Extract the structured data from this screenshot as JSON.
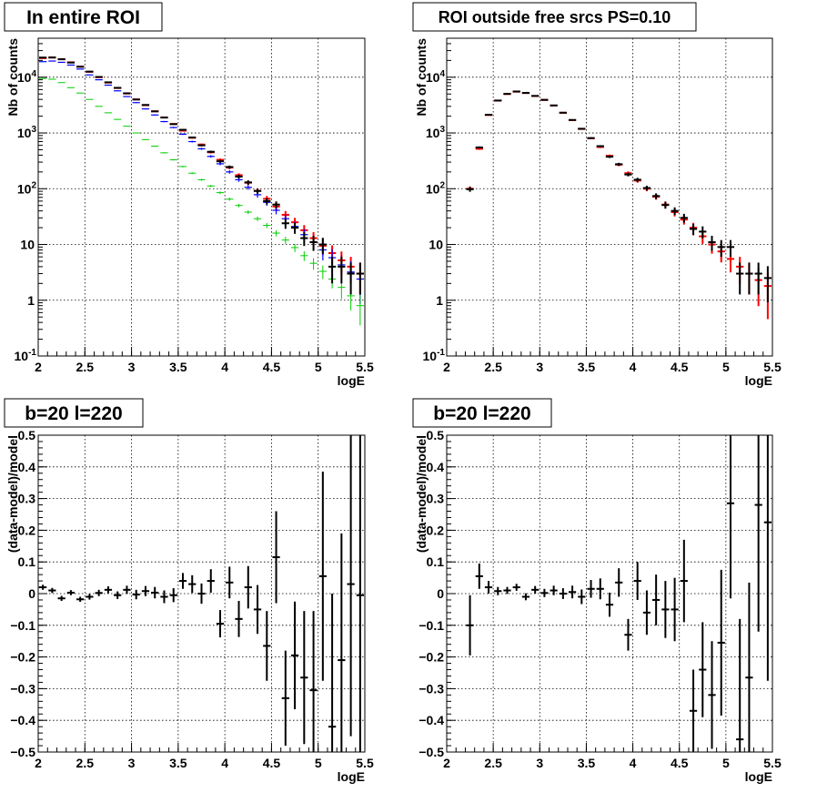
{
  "chart_data": [
    {
      "type": "scatter",
      "title": "In entire ROI",
      "xlabel": "logE",
      "ylabel": "Nb of counts",
      "xlim": [
        2,
        5.5
      ],
      "ylim": [
        0.1,
        50000
      ],
      "yscale": "log",
      "grid": true,
      "x_ticks": [
        "2",
        "2.5",
        "3",
        "3.5",
        "4",
        "4.5",
        "5",
        "5.5"
      ],
      "y_ticks": [
        "10^-1",
        "1",
        "10",
        "10^2",
        "10^3",
        "10^4"
      ],
      "bin_width": 0.1,
      "series": [
        {
          "color": "#ff0000",
          "x": [
            2.05,
            2.15,
            2.25,
            2.35,
            2.45,
            2.55,
            2.65,
            2.75,
            2.85,
            2.95,
            3.05,
            3.15,
            3.25,
            3.35,
            3.45,
            3.55,
            3.65,
            3.75,
            3.85,
            3.95,
            4.05,
            4.15,
            4.25,
            4.35,
            4.45,
            4.55,
            4.65,
            4.75,
            4.85,
            4.95,
            5.05,
            5.15,
            5.25,
            5.35,
            5.45
          ],
          "y": [
            22000,
            22500,
            21000,
            18500,
            15500,
            12500,
            10000,
            8000,
            6400,
            5100,
            4000,
            3150,
            2450,
            1900,
            1450,
            1100,
            820,
            620,
            450,
            330,
            240,
            175,
            128,
            92,
            66,
            48,
            34,
            25,
            18,
            13,
            9.5,
            7,
            5.2,
            4,
            3
          ]
        },
        {
          "color": "#0000ff",
          "x": [
            2.05,
            2.15,
            2.25,
            2.35,
            2.45,
            2.55,
            2.65,
            2.75,
            2.85,
            2.95,
            3.05,
            3.15,
            3.25,
            3.35,
            3.45,
            3.55,
            3.65,
            3.75,
            3.85,
            3.95,
            4.05,
            4.15,
            4.25,
            4.35,
            4.45,
            4.55,
            4.65,
            4.75,
            4.85,
            4.95,
            5.05,
            5.15,
            5.25,
            5.35,
            5.45
          ],
          "y": [
            19000,
            19500,
            18500,
            16500,
            14000,
            11000,
            9000,
            7200,
            5700,
            4500,
            3500,
            2700,
            2100,
            1600,
            1250,
            950,
            700,
            520,
            380,
            280,
            200,
            145,
            106,
            78,
            57,
            41,
            29,
            21,
            15,
            11,
            8,
            5.8,
            4.3,
            3.2,
            2.4
          ]
        },
        {
          "color": "#00cc00",
          "x": [
            2.05,
            2.15,
            2.25,
            2.35,
            2.45,
            2.55,
            2.65,
            2.75,
            2.85,
            2.95,
            3.05,
            3.15,
            3.25,
            3.35,
            3.45,
            3.55,
            3.65,
            3.75,
            3.85,
            3.95,
            4.05,
            4.15,
            4.25,
            4.35,
            4.45,
            4.55,
            4.65,
            4.75,
            4.85,
            4.95,
            5.05,
            5.15,
            5.25,
            5.35,
            5.45
          ],
          "y": [
            9500,
            9200,
            8000,
            6500,
            5200,
            4000,
            3000,
            2300,
            1750,
            1320,
            1000,
            760,
            580,
            440,
            330,
            250,
            190,
            145,
            112,
            85,
            65,
            50,
            38,
            29,
            22,
            16,
            12,
            8.8,
            6.3,
            4.6,
            3.3,
            2.4,
            1.7,
            1.2,
            0.8
          ],
          "err_scale": 0.5
        },
        {
          "color": "#000000",
          "x": [
            2.05,
            2.15,
            2.25,
            2.35,
            2.45,
            2.55,
            2.65,
            2.75,
            2.85,
            2.95,
            3.05,
            3.15,
            3.25,
            3.35,
            3.45,
            3.55,
            3.65,
            3.75,
            3.85,
            3.95,
            4.05,
            4.15,
            4.25,
            4.35,
            4.45,
            4.55,
            4.65,
            4.75,
            4.85,
            4.95,
            5.05,
            5.15,
            5.25,
            5.35,
            5.45
          ],
          "y": [
            22500,
            22600,
            21000,
            18300,
            15400,
            12600,
            10100,
            8100,
            6450,
            5150,
            3980,
            3180,
            2440,
            1890,
            1440,
            1140,
            830,
            600,
            460,
            310,
            245,
            165,
            130,
            91,
            60,
            52,
            24,
            20,
            13,
            11,
            10,
            4,
            4,
            3,
            3
          ]
        }
      ]
    },
    {
      "type": "scatter",
      "title": "ROI outside free srcs PS=0.10",
      "xlabel": "logE",
      "ylabel": "Nb of counts",
      "xlim": [
        2,
        5.5
      ],
      "ylim": [
        0.1,
        50000
      ],
      "yscale": "log",
      "grid": true,
      "x_ticks": [
        "2",
        "2.5",
        "3",
        "3.5",
        "4",
        "4.5",
        "5",
        "5.5"
      ],
      "y_ticks": [
        "10^-1",
        "1",
        "10",
        "10^2",
        "10^3",
        "10^4"
      ],
      "bin_width": 0.1,
      "series": [
        {
          "color": "#ff0000",
          "x": [
            2.25,
            2.35,
            2.45,
            2.55,
            2.65,
            2.75,
            2.85,
            2.95,
            3.05,
            3.15,
            3.25,
            3.35,
            3.45,
            3.55,
            3.65,
            3.75,
            3.85,
            3.95,
            4.05,
            4.15,
            4.25,
            4.35,
            4.45,
            4.55,
            4.65,
            4.75,
            4.85,
            4.95,
            5.05,
            5.15,
            5.25,
            5.35,
            5.45
          ],
          "y": [
            100,
            520,
            2100,
            3800,
            5000,
            5500,
            5200,
            4600,
            3900,
            3100,
            2300,
            1700,
            1180,
            800,
            560,
            390,
            270,
            190,
            140,
            100,
            72,
            52,
            38,
            28,
            20,
            14,
            10,
            7.5,
            5.5,
            4,
            3,
            2.3,
            1.8
          ]
        },
        {
          "color": "#000000",
          "x": [
            2.25,
            2.35,
            2.45,
            2.55,
            2.65,
            2.75,
            2.85,
            2.95,
            3.05,
            3.15,
            3.25,
            3.35,
            3.45,
            3.55,
            3.65,
            3.75,
            3.85,
            3.95,
            4.05,
            4.15,
            4.25,
            4.35,
            4.45,
            4.55,
            4.65,
            4.75,
            4.85,
            4.95,
            5.05,
            5.15,
            5.25,
            5.35,
            5.45
          ],
          "y": [
            98,
            550,
            2120,
            3820,
            5020,
            5550,
            5240,
            4620,
            3930,
            3120,
            2310,
            1710,
            1190,
            810,
            580,
            375,
            275,
            180,
            145,
            103,
            74,
            51,
            40,
            30,
            19,
            17,
            11,
            9,
            9,
            3,
            3,
            3,
            2.5
          ]
        }
      ]
    },
    {
      "type": "scatter",
      "title": "b=20 l=220",
      "xlabel": "logE",
      "ylabel": "(data-model)/model",
      "xlim": [
        2,
        5.5
      ],
      "ylim": [
        -0.5,
        0.5
      ],
      "grid": true,
      "x_ticks": [
        "2",
        "2.5",
        "3",
        "3.5",
        "4",
        "4.5",
        "5",
        "5.5"
      ],
      "y_ticks": [
        "−0.5",
        "−0.4",
        "−0.3",
        "−0.2",
        "−0.1",
        "0",
        "0.1",
        "0.2",
        "0.3",
        "0.4",
        "0.5"
      ],
      "y_tick_values": [
        -0.5,
        -0.4,
        -0.3,
        -0.2,
        -0.1,
        0,
        0.1,
        0.2,
        0.3,
        0.4,
        0.5
      ],
      "bin_width": 0.1,
      "series": [
        {
          "color": "#000000",
          "x": [
            2.05,
            2.15,
            2.25,
            2.35,
            2.45,
            2.55,
            2.65,
            2.75,
            2.85,
            2.95,
            3.05,
            3.15,
            3.25,
            3.35,
            3.45,
            3.55,
            3.65,
            3.75,
            3.85,
            3.95,
            4.05,
            4.15,
            4.25,
            4.35,
            4.45,
            4.55,
            4.65,
            4.75,
            4.85,
            4.95,
            5.05,
            5.15,
            5.25,
            5.35,
            5.45
          ],
          "y": [
            0.02,
            0.01,
            -0.015,
            0.003,
            -0.018,
            -0.01,
            0.002,
            0.012,
            -0.005,
            0.012,
            -0.003,
            0.008,
            0.003,
            -0.01,
            -0.005,
            0.04,
            0.03,
            0,
            0.04,
            -0.095,
            0.035,
            -0.08,
            0.02,
            -0.05,
            -0.165,
            0.115,
            -0.33,
            -0.195,
            -0.265,
            -0.305,
            0.055,
            -0.42,
            -0.21,
            0.03,
            -0.005
          ],
          "err": [
            0.008,
            0.008,
            0.008,
            0.008,
            0.008,
            0.009,
            0.01,
            0.011,
            0.012,
            0.013,
            0.015,
            0.016,
            0.018,
            0.02,
            0.022,
            0.025,
            0.028,
            0.032,
            0.037,
            0.043,
            0.05,
            0.057,
            0.067,
            0.077,
            0.11,
            0.145,
            0.15,
            0.17,
            0.21,
            0.25,
            0.33,
            0.42,
            0.4,
            0.48,
            0.55
          ]
        }
      ]
    },
    {
      "type": "scatter",
      "title": "b=20 l=220",
      "xlabel": "logE",
      "ylabel": "(data-model)/model",
      "xlim": [
        2,
        5.5
      ],
      "ylim": [
        -0.5,
        0.5
      ],
      "grid": true,
      "x_ticks": [
        "2",
        "2.5",
        "3",
        "3.5",
        "4",
        "4.5",
        "5",
        "5.5"
      ],
      "y_ticks": [
        "−0.5",
        "−0.4",
        "−0.3",
        "−0.2",
        "−0.1",
        "0",
        "0.1",
        "0.2",
        "0.3",
        "0.4",
        "0.5"
      ],
      "y_tick_values": [
        -0.5,
        -0.4,
        -0.3,
        -0.2,
        -0.1,
        0,
        0.1,
        0.2,
        0.3,
        0.4,
        0.5
      ],
      "bin_width": 0.1,
      "series": [
        {
          "color": "#000000",
          "x": [
            2.25,
            2.35,
            2.45,
            2.55,
            2.65,
            2.75,
            2.85,
            2.95,
            3.05,
            3.15,
            3.25,
            3.35,
            3.45,
            3.55,
            3.65,
            3.75,
            3.85,
            3.95,
            4.05,
            4.15,
            4.25,
            4.35,
            4.45,
            4.55,
            4.65,
            4.75,
            4.85,
            4.95,
            5.05,
            5.15,
            5.25,
            5.35,
            5.45
          ],
          "y": [
            -0.1,
            0.055,
            0.02,
            0.008,
            0.01,
            0.02,
            -0.01,
            0.012,
            0.002,
            0.01,
            0,
            0.005,
            -0.01,
            0.015,
            0.015,
            -0.035,
            0.035,
            -0.13,
            0.04,
            -0.06,
            -0.02,
            -0.05,
            -0.05,
            0.04,
            -0.37,
            -0.24,
            -0.32,
            -0.155,
            0.285,
            -0.46,
            -0.265,
            0.28,
            0.225
          ],
          "err": [
            0.095,
            0.04,
            0.02,
            0.013,
            0.011,
            0.011,
            0.011,
            0.012,
            0.013,
            0.015,
            0.017,
            0.02,
            0.023,
            0.028,
            0.033,
            0.038,
            0.045,
            0.05,
            0.06,
            0.07,
            0.08,
            0.09,
            0.1,
            0.13,
            0.13,
            0.15,
            0.17,
            0.23,
            0.3,
            0.38,
            0.3,
            0.4,
            0.5
          ]
        }
      ]
    }
  ]
}
